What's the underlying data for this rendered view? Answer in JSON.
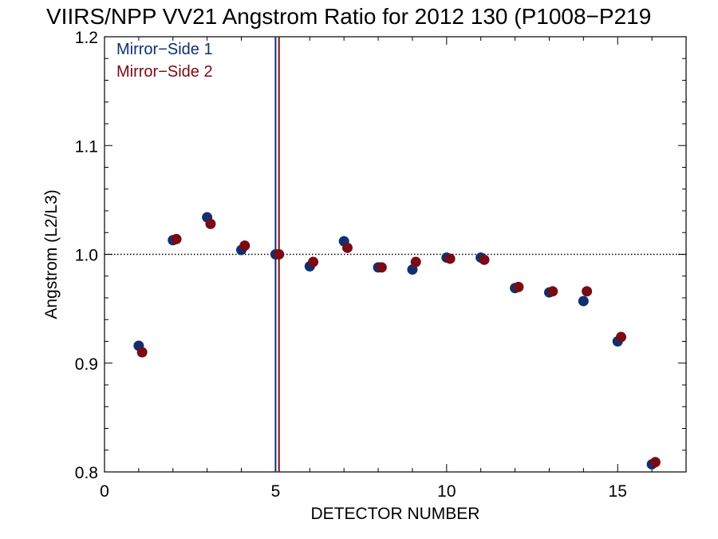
{
  "chart_data": {
    "type": "scatter",
    "title": "VIIRS/NPP VV21 Angstrom Ratio for 2012 130 (P1008−P219",
    "xlabel": "DETECTOR NUMBER",
    "ylabel": "Angstrom (L2/L3)",
    "xlim": [
      0,
      17
    ],
    "ylim": [
      0.8,
      1.2
    ],
    "x_ticks": [
      0,
      5,
      10,
      15
    ],
    "x_tick_labels": [
      "0",
      "5",
      "10",
      "15"
    ],
    "y_ticks": [
      0.8,
      0.9,
      1.0,
      1.1,
      1.2
    ],
    "y_tick_labels": [
      "0.8",
      "0.9",
      "1.0",
      "1.1",
      "1.2"
    ],
    "reference_line_y": 1.0,
    "reference_line_style": "dotted",
    "legend_position": "top-left",
    "series": [
      {
        "name": "Mirror−Side 1",
        "color": "#0f3070",
        "x": [
          1,
          2,
          3,
          4,
          5,
          6,
          7,
          8,
          9,
          10,
          11,
          12,
          13,
          14,
          15,
          16
        ],
        "y": [
          0.916,
          1.013,
          1.034,
          1.004,
          1.0,
          0.989,
          1.012,
          0.988,
          0.986,
          0.997,
          0.997,
          0.969,
          0.965,
          0.957,
          0.92,
          0.807
        ],
        "vertical_marker_x": 5
      },
      {
        "name": "Mirror−Side 2",
        "color": "#7a0a14",
        "x": [
          1.1,
          2.1,
          3.1,
          4.1,
          5.1,
          6.1,
          7.1,
          8.1,
          9.1,
          10.1,
          11.1,
          12.1,
          13.1,
          14.1,
          15.1,
          16.1
        ],
        "y": [
          0.91,
          1.014,
          1.028,
          1.008,
          1.0,
          0.993,
          1.006,
          0.988,
          0.993,
          0.996,
          0.995,
          0.97,
          0.966,
          0.966,
          0.924,
          0.809
        ],
        "vertical_marker_x": 5.1
      }
    ]
  }
}
